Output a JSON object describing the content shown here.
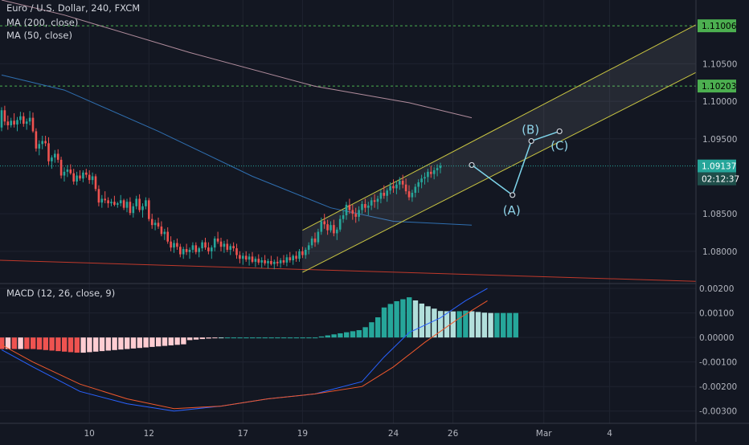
{
  "legend": {
    "symbol": "Euro / U.S. Dollar, 240, FXCM",
    "ma200": "MA (200, close)",
    "ma50": "MA (50, close)",
    "macd": "MACD (12, 26, close, 9)"
  },
  "price_axis": {
    "ticks": [
      "1.10500",
      "1.10000",
      "1.09500",
      "1.08500",
      "1.08000"
    ],
    "tick_values": [
      1.105,
      1.1,
      1.095,
      1.085,
      1.08
    ],
    "ylim": [
      1.0757,
      1.1135
    ]
  },
  "price_tags": {
    "level_upper": "1.11006",
    "level_mid": "1.10203",
    "last_price": "1.09137",
    "countdown": "02:12:37"
  },
  "macd_axis": {
    "ticks": [
      "0.00200",
      "0.00100",
      "0.00000",
      "-0.00100",
      "-0.00200",
      "-0.00300"
    ],
    "tick_values": [
      0.002,
      0.001,
      0,
      -0.001,
      -0.002,
      -0.003
    ],
    "ylim": [
      -0.0035,
      0.0022
    ]
  },
  "time_axis": {
    "labels": [
      "10",
      "12",
      "17",
      "19",
      "24",
      "26",
      "Mar",
      "4"
    ],
    "index": [
      28,
      47,
      77,
      96,
      125,
      144,
      173,
      194
    ]
  },
  "wave_labels": {
    "a": "(A)",
    "b": "(B)",
    "c": "(C)"
  },
  "colors": {
    "background": "#131722",
    "up": "#26a69a",
    "down": "#ef5350",
    "ma200": "#b08c9c",
    "ma50": "#2f6fb0",
    "macd": "#2962ff",
    "signal": "#f0582c",
    "channel": "#c9c542",
    "level": "#4caf50",
    "projection": "#7ed4ea"
  },
  "chart_data": {
    "type": "candlestick",
    "timeframe_minutes": 240,
    "candles_ohlc": [
      [
        1.0965,
        1.0992,
        1.096,
        1.0988
      ],
      [
        1.0988,
        1.0994,
        1.0968,
        1.0973
      ],
      [
        1.0973,
        1.0981,
        1.0962,
        1.0968
      ],
      [
        1.0968,
        1.0978,
        1.0965,
        1.0974
      ],
      [
        1.0974,
        1.0984,
        1.0965,
        1.0969
      ],
      [
        1.0969,
        1.0979,
        1.096,
        1.0975
      ],
      [
        1.0975,
        1.0986,
        1.097,
        1.098
      ],
      [
        1.098,
        1.0985,
        1.0966,
        1.097
      ],
      [
        1.097,
        1.0977,
        1.0962,
        1.0973
      ],
      [
        1.0973,
        1.0987,
        1.0968,
        1.0978
      ],
      [
        1.0978,
        1.0985,
        1.0958,
        1.096
      ],
      [
        1.096,
        1.0964,
        1.0933,
        1.0937
      ],
      [
        1.0937,
        1.0948,
        1.0928,
        1.0943
      ],
      [
        1.0943,
        1.0954,
        1.0936,
        1.0947
      ],
      [
        1.0947,
        1.0954,
        1.094,
        1.0944
      ],
      [
        1.0944,
        1.0952,
        1.0915,
        1.092
      ],
      [
        1.092,
        1.0928,
        1.091,
        1.0925
      ],
      [
        1.0925,
        1.0935,
        1.0918,
        1.093
      ],
      [
        1.093,
        1.0936,
        1.0918,
        1.0922
      ],
      [
        1.0922,
        1.0926,
        1.0897,
        1.0901
      ],
      [
        1.0901,
        1.0912,
        1.0893,
        1.0906
      ],
      [
        1.0906,
        1.0915,
        1.0899,
        1.0909
      ],
      [
        1.0909,
        1.0916,
        1.0902,
        1.0904
      ],
      [
        1.0904,
        1.091,
        1.0889,
        1.0893
      ],
      [
        1.0893,
        1.0906,
        1.0888,
        1.0901
      ],
      [
        1.0901,
        1.0908,
        1.0894,
        1.0897
      ],
      [
        1.0897,
        1.0908,
        1.0892,
        1.0905
      ],
      [
        1.0905,
        1.091,
        1.0898,
        1.0902
      ],
      [
        1.0902,
        1.0908,
        1.089,
        1.0895
      ],
      [
        1.0895,
        1.0905,
        1.0889,
        1.09
      ],
      [
        1.09,
        1.0903,
        1.088,
        1.0883
      ],
      [
        1.0883,
        1.0888,
        1.086,
        1.0865
      ],
      [
        1.0865,
        1.0875,
        1.0858,
        1.087
      ],
      [
        1.087,
        1.088,
        1.0864,
        1.0868
      ],
      [
        1.0868,
        1.0872,
        1.0858,
        1.0864
      ],
      [
        1.0864,
        1.087,
        1.086,
        1.0866
      ],
      [
        1.0866,
        1.0874,
        1.086,
        1.0862
      ],
      [
        1.0862,
        1.0866,
        1.0858,
        1.0864
      ],
      [
        1.0864,
        1.0875,
        1.086,
        1.0868
      ],
      [
        1.0868,
        1.087,
        1.0855,
        1.0858
      ],
      [
        1.0858,
        1.087,
        1.0852,
        1.0866
      ],
      [
        1.0866,
        1.0872,
        1.0848,
        1.0851
      ],
      [
        1.0851,
        1.0864,
        1.0845,
        1.086
      ],
      [
        1.086,
        1.0874,
        1.0856,
        1.087
      ],
      [
        1.087,
        1.0876,
        1.0852,
        1.0855
      ],
      [
        1.0855,
        1.0864,
        1.0845,
        1.086
      ],
      [
        1.086,
        1.0872,
        1.0856,
        1.0868
      ],
      [
        1.0868,
        1.0871,
        1.084,
        1.0843
      ],
      [
        1.0843,
        1.085,
        1.083,
        1.0835
      ],
      [
        1.0835,
        1.0842,
        1.0828,
        1.0838
      ],
      [
        1.0838,
        1.0845,
        1.083,
        1.0833
      ],
      [
        1.0833,
        1.084,
        1.082,
        1.0823
      ],
      [
        1.0823,
        1.083,
        1.0815,
        1.0826
      ],
      [
        1.0826,
        1.0832,
        1.081,
        1.0813
      ],
      [
        1.0813,
        1.082,
        1.08,
        1.0805
      ],
      [
        1.0805,
        1.0815,
        1.0798,
        1.0811
      ],
      [
        1.0811,
        1.0817,
        1.0802,
        1.0806
      ],
      [
        1.0806,
        1.081,
        1.0792,
        1.0796
      ],
      [
        1.0796,
        1.0806,
        1.079,
        1.0803
      ],
      [
        1.0803,
        1.081,
        1.0795,
        1.0799
      ],
      [
        1.0799,
        1.0805,
        1.079,
        1.0802
      ],
      [
        1.0802,
        1.0812,
        1.0798,
        1.0808
      ],
      [
        1.0808,
        1.0812,
        1.0796,
        1.0799
      ],
      [
        1.0799,
        1.0806,
        1.0792,
        1.0804
      ],
      [
        1.0804,
        1.0815,
        1.08,
        1.0812
      ],
      [
        1.0812,
        1.0818,
        1.0802,
        1.0805
      ],
      [
        1.0805,
        1.0812,
        1.0796,
        1.08
      ],
      [
        1.08,
        1.0808,
        1.079,
        1.0805
      ],
      [
        1.0805,
        1.082,
        1.08,
        1.0817
      ],
      [
        1.0817,
        1.0826,
        1.081,
        1.0813
      ],
      [
        1.0813,
        1.0818,
        1.08,
        1.0806
      ],
      [
        1.0806,
        1.0814,
        1.0798,
        1.081
      ],
      [
        1.081,
        1.0816,
        1.0799,
        1.0802
      ],
      [
        1.0802,
        1.081,
        1.0795,
        1.0807
      ],
      [
        1.0807,
        1.0812,
        1.08,
        1.0804
      ],
      [
        1.0804,
        1.081,
        1.079,
        1.0795
      ],
      [
        1.0795,
        1.08,
        1.0784,
        1.079
      ],
      [
        1.079,
        1.0798,
        1.0782,
        1.0794
      ],
      [
        1.0794,
        1.08,
        1.0786,
        1.0789
      ],
      [
        1.0789,
        1.0797,
        1.0781,
        1.0793
      ],
      [
        1.0793,
        1.0799,
        1.0784,
        1.0786
      ],
      [
        1.0786,
        1.0793,
        1.0779,
        1.079
      ],
      [
        1.079,
        1.0796,
        1.0782,
        1.0785
      ],
      [
        1.0785,
        1.0792,
        1.0778,
        1.0788
      ],
      [
        1.0788,
        1.0795,
        1.0781,
        1.0784
      ],
      [
        1.0784,
        1.079,
        1.0777,
        1.0787
      ],
      [
        1.0787,
        1.0794,
        1.0781,
        1.0783
      ],
      [
        1.0783,
        1.0789,
        1.0776,
        1.0786
      ],
      [
        1.0786,
        1.0793,
        1.078,
        1.0784
      ],
      [
        1.0784,
        1.0791,
        1.0778,
        1.0788
      ],
      [
        1.0788,
        1.0795,
        1.0782,
        1.0785
      ],
      [
        1.0785,
        1.0796,
        1.078,
        1.0792
      ],
      [
        1.0792,
        1.0799,
        1.0785,
        1.0788
      ],
      [
        1.0788,
        1.0796,
        1.0782,
        1.0794
      ],
      [
        1.0794,
        1.08,
        1.0786,
        1.079
      ],
      [
        1.079,
        1.0803,
        1.0786,
        1.08
      ],
      [
        1.08,
        1.0806,
        1.0791,
        1.0795
      ],
      [
        1.0795,
        1.0805,
        1.079,
        1.0802
      ],
      [
        1.0802,
        1.0812,
        1.0796,
        1.0808
      ],
      [
        1.0808,
        1.082,
        1.0804,
        1.0817
      ],
      [
        1.0817,
        1.0825,
        1.0806,
        1.0812
      ],
      [
        1.0812,
        1.083,
        1.0809,
        1.0826
      ],
      [
        1.0826,
        1.0845,
        1.0822,
        1.084
      ],
      [
        1.084,
        1.085,
        1.083,
        1.0836
      ],
      [
        1.0836,
        1.0842,
        1.0822,
        1.0828
      ],
      [
        1.0828,
        1.084,
        1.0825,
        1.0835
      ],
      [
        1.0835,
        1.0842,
        1.082,
        1.0824
      ],
      [
        1.0824,
        1.0832,
        1.0815,
        1.0829
      ],
      [
        1.0829,
        1.0848,
        1.0826,
        1.0843
      ],
      [
        1.0843,
        1.0855,
        1.0838,
        1.0848
      ],
      [
        1.0848,
        1.0866,
        1.0842,
        1.0862
      ],
      [
        1.0862,
        1.087,
        1.085,
        1.0855
      ],
      [
        1.0855,
        1.0862,
        1.0842,
        1.085
      ],
      [
        1.085,
        1.0858,
        1.0838,
        1.0846
      ],
      [
        1.0846,
        1.086,
        1.084,
        1.0855
      ],
      [
        1.0855,
        1.0867,
        1.085,
        1.0863
      ],
      [
        1.0863,
        1.087,
        1.0852,
        1.0858
      ],
      [
        1.0858,
        1.0866,
        1.0848,
        1.0861
      ],
      [
        1.0861,
        1.0872,
        1.0855,
        1.0868
      ],
      [
        1.0868,
        1.0876,
        1.0858,
        1.0866
      ],
      [
        1.0866,
        1.0874,
        1.0856,
        1.087
      ],
      [
        1.087,
        1.0882,
        1.0864,
        1.0878
      ],
      [
        1.0878,
        1.0888,
        1.087,
        1.0874
      ],
      [
        1.0874,
        1.0884,
        1.0866,
        1.0881
      ],
      [
        1.0881,
        1.0892,
        1.0876,
        1.0887
      ],
      [
        1.0887,
        1.0896,
        1.0878,
        1.0884
      ],
      [
        1.0884,
        1.0894,
        1.0876,
        1.0889
      ],
      [
        1.0889,
        1.0899,
        1.0882,
        1.0894
      ],
      [
        1.0894,
        1.0902,
        1.0884,
        1.0889
      ],
      [
        1.0889,
        1.0897,
        1.0876,
        1.088
      ],
      [
        1.088,
        1.0888,
        1.0868,
        1.0872
      ],
      [
        1.0872,
        1.0882,
        1.0866,
        1.0878
      ],
      [
        1.0878,
        1.089,
        1.0872,
        1.0886
      ],
      [
        1.0886,
        1.0896,
        1.0878,
        1.0892
      ],
      [
        1.0892,
        1.0902,
        1.0884,
        1.0897
      ],
      [
        1.0897,
        1.0905,
        1.0889,
        1.0899
      ],
      [
        1.0899,
        1.091,
        1.0892,
        1.0906
      ],
      [
        1.0906,
        1.0914,
        1.0898,
        1.0903
      ],
      [
        1.0903,
        1.0912,
        1.0896,
        1.0908
      ],
      [
        1.0908,
        1.0916,
        1.09,
        1.0911
      ],
      [
        1.0911,
        1.0918,
        1.0904,
        1.0914
      ]
    ],
    "overlays": {
      "levels": [
        1.11006,
        1.10203
      ],
      "last_price": 1.09137,
      "channel_upper": [
        [
          96,
          1.0828
        ],
        [
          178,
          1.1007
        ]
      ],
      "channel_lower": [
        [
          96,
          1.0772
        ],
        [
          178,
          1.0946
        ]
      ],
      "wave_points": {
        "start": [
          150,
          1.0915
        ],
        "A": [
          163,
          1.0875
        ],
        "B": [
          169,
          1.0947
        ],
        "C": [
          178,
          1.096
        ]
      },
      "ma200": [
        [
          0,
          1.1135
        ],
        [
          20,
          1.1115
        ],
        [
          60,
          1.1065
        ],
        [
          100,
          1.102
        ],
        [
          130,
          1.0998
        ],
        [
          150,
          1.0978
        ]
      ],
      "ma50": [
        [
          0,
          1.1035
        ],
        [
          20,
          1.1015
        ],
        [
          50,
          1.096
        ],
        [
          80,
          1.09
        ],
        [
          105,
          1.0858
        ],
        [
          125,
          1.084
        ],
        [
          150,
          1.0835
        ]
      ]
    },
    "macd": {
      "macd_line": [
        [
          0,
          -0.0005
        ],
        [
          10,
          -0.0012
        ],
        [
          25,
          -0.0022
        ],
        [
          40,
          -0.0027
        ],
        [
          55,
          -0.003
        ],
        [
          70,
          -0.0028
        ],
        [
          85,
          -0.0025
        ],
        [
          100,
          -0.0023
        ],
        [
          115,
          -0.0018
        ],
        [
          122,
          -0.0008
        ],
        [
          130,
          0.0002
        ],
        [
          140,
          0.0008
        ],
        [
          148,
          0.0015
        ],
        [
          155,
          0.002
        ]
      ],
      "signal_line": [
        [
          0,
          -0.0003
        ],
        [
          10,
          -0.001
        ],
        [
          25,
          -0.0019
        ],
        [
          40,
          -0.0025
        ],
        [
          55,
          -0.0029
        ],
        [
          70,
          -0.0028
        ],
        [
          85,
          -0.0025
        ],
        [
          100,
          -0.0023
        ],
        [
          115,
          -0.002
        ],
        [
          125,
          -0.0012
        ],
        [
          135,
          -0.0002
        ],
        [
          145,
          0.0007
        ],
        [
          155,
          0.0015
        ]
      ]
    }
  }
}
